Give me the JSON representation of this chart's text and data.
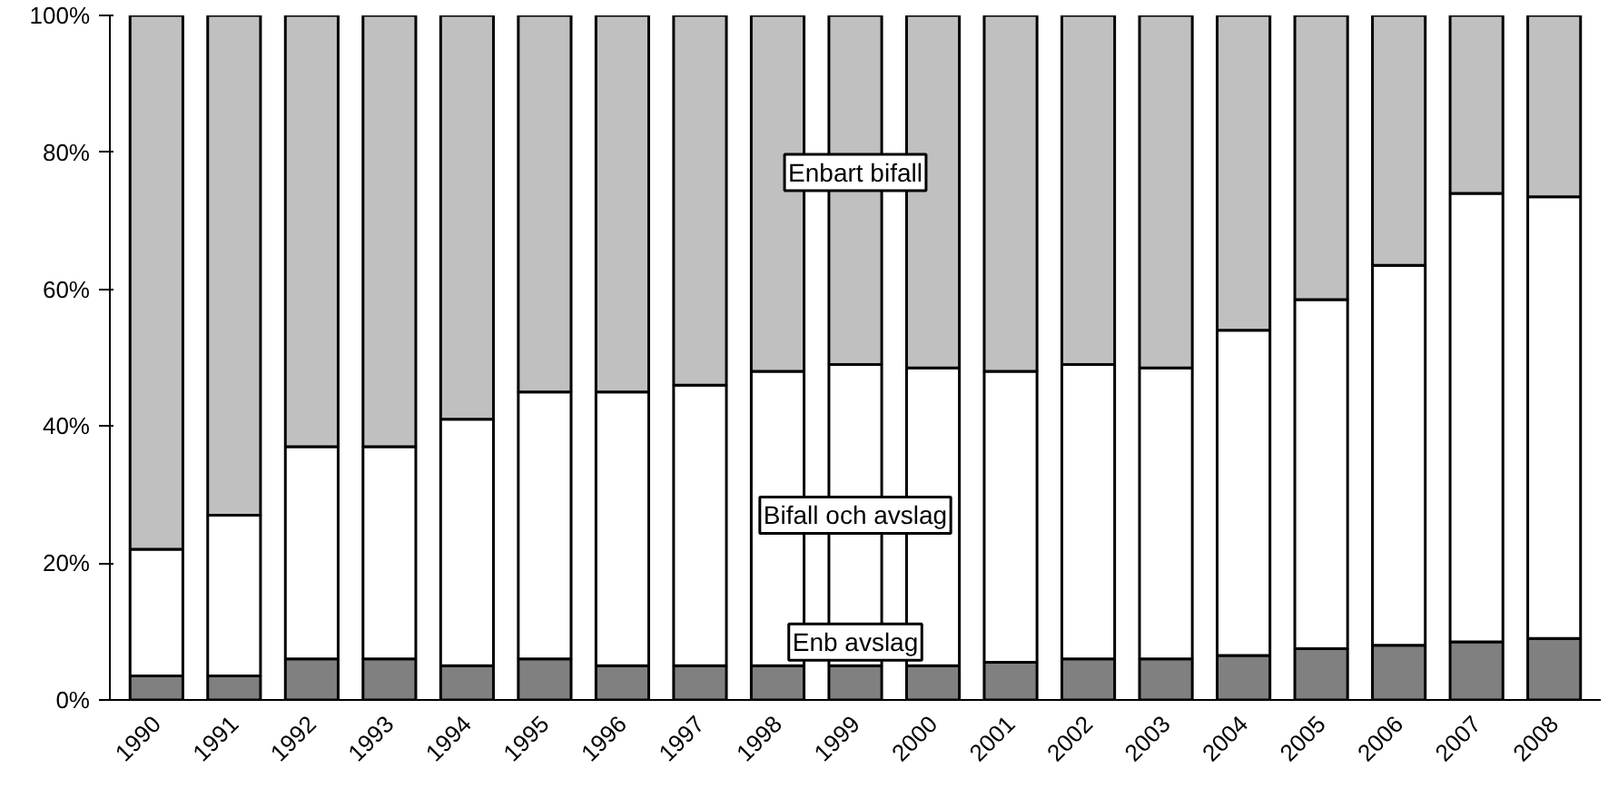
{
  "chart_data": {
    "type": "bar",
    "stacked": true,
    "categories": [
      "1990",
      "1991",
      "1992",
      "1993",
      "1994",
      "1995",
      "1996",
      "1997",
      "1998",
      "1999",
      "2000",
      "2001",
      "2002",
      "2003",
      "2004",
      "2005",
      "2006",
      "2007",
      "2008"
    ],
    "ylim": [
      0,
      100
    ],
    "yticks": [
      {
        "value": 0,
        "label": "0%"
      },
      {
        "value": 20,
        "label": "20%"
      },
      {
        "value": 40,
        "label": "40%"
      },
      {
        "value": 60,
        "label": "60%"
      },
      {
        "value": 80,
        "label": "80%"
      },
      {
        "value": 100,
        "label": "100%"
      }
    ],
    "grid": false,
    "series": [
      {
        "name": "Enb avslag",
        "color": "#808080",
        "values": [
          3.5,
          3.5,
          6,
          6,
          5,
          6,
          5,
          5,
          5,
          5,
          5,
          5.5,
          6,
          6,
          6.5,
          7.5,
          8,
          8.5,
          9
        ]
      },
      {
        "name": "Bifall och avslag",
        "color": "#ffffff",
        "values": [
          18.5,
          23.5,
          31,
          31,
          36,
          39,
          40,
          41,
          43,
          44,
          43.5,
          42.5,
          43,
          42.5,
          47.5,
          51,
          55.5,
          65.5,
          64.5
        ]
      },
      {
        "name": "Enbart bifall",
        "color": "#c0c0c0",
        "values": [
          78,
          73,
          63,
          63,
          59,
          55,
          55,
          54,
          52,
          51,
          51.5,
          52,
          51,
          51.5,
          46,
          41.5,
          36.5,
          26,
          26.5
        ]
      }
    ]
  }
}
